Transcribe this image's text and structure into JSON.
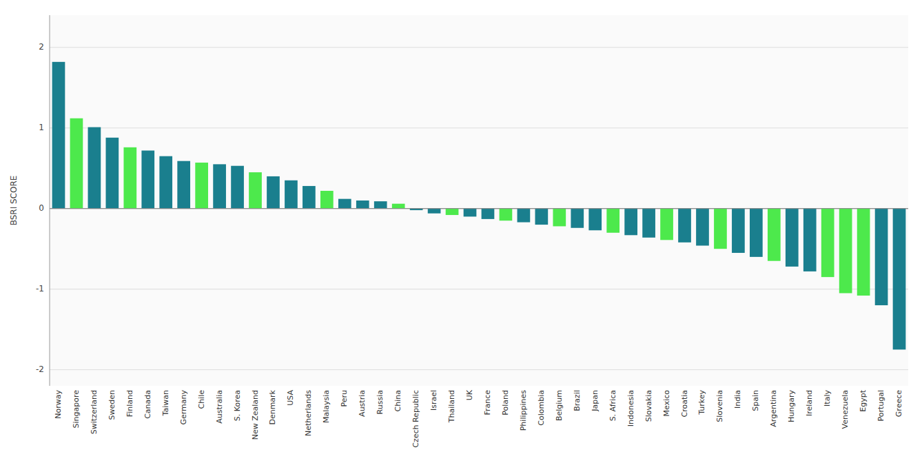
{
  "chart_data": {
    "type": "bar",
    "ylabel": "BSRI SCORE",
    "categories": [
      "Norway",
      "Singapore",
      "Switzerland",
      "Sweden",
      "Finland",
      "Canada",
      "Taiwan",
      "Germany",
      "Chile",
      "Australia",
      "S. Korea",
      "New Zealand",
      "Denmark",
      "USA",
      "Netherlands",
      "Malaysia",
      "Peru",
      "Austria",
      "Russia",
      "China",
      "Czech Republic",
      "Israel",
      "Thailand",
      "UK",
      "France",
      "Poland",
      "Philippines",
      "Colombia",
      "Belgium",
      "Brazil",
      "Japan",
      "S. Africa",
      "Indonesia",
      "Slovakia",
      "Mexico",
      "Croatia",
      "Turkey",
      "Slovenia",
      "India",
      "Spain",
      "Argentina",
      "Hungary",
      "Ireland",
      "Italy",
      "Venezuela",
      "Egypt",
      "Portugal",
      "Greece"
    ],
    "values": [
      1.82,
      1.12,
      1.01,
      0.88,
      0.76,
      0.72,
      0.65,
      0.59,
      0.57,
      0.55,
      0.53,
      0.45,
      0.4,
      0.35,
      0.28,
      0.22,
      0.12,
      0.1,
      0.09,
      0.06,
      -0.02,
      -0.06,
      -0.08,
      -0.1,
      -0.13,
      -0.15,
      -0.17,
      -0.2,
      -0.22,
      -0.24,
      -0.27,
      -0.3,
      -0.33,
      -0.36,
      -0.39,
      -0.42,
      -0.46,
      -0.5,
      -0.55,
      -0.6,
      -0.65,
      -0.72,
      -0.78,
      -0.85,
      -1.05,
      -1.08,
      -1.2,
      -1.75
    ],
    "colors": [
      "#1a7f8e",
      "#4de94c",
      "#1a7f8e",
      "#1a7f8e",
      "#4de94c",
      "#1a7f8e",
      "#1a7f8e",
      "#1a7f8e",
      "#4de94c",
      "#1a7f8e",
      "#1a7f8e",
      "#4de94c",
      "#1a7f8e",
      "#1a7f8e",
      "#1a7f8e",
      "#4de94c",
      "#1a7f8e",
      "#1a7f8e",
      "#1a7f8e",
      "#4de94c",
      "#1a7f8e",
      "#1a7f8e",
      "#4de94c",
      "#1a7f8e",
      "#1a7f8e",
      "#4de94c",
      "#1a7f8e",
      "#1a7f8e",
      "#4de94c",
      "#1a7f8e",
      "#1a7f8e",
      "#4de94c",
      "#1a7f8e",
      "#1a7f8e",
      "#4de94c",
      "#1a7f8e",
      "#1a7f8e",
      "#4de94c",
      "#1a7f8e",
      "#1a7f8e",
      "#4de94c",
      "#1a7f8e",
      "#1a7f8e",
      "#4de94c",
      "#4de94c",
      "#4de94c",
      "#1a7f8e",
      "#1a7f8e"
    ],
    "ylim": [
      -2.2,
      2.4
    ],
    "yticks": [
      -2,
      -1,
      0,
      1,
      2
    ],
    "grid": true
  }
}
